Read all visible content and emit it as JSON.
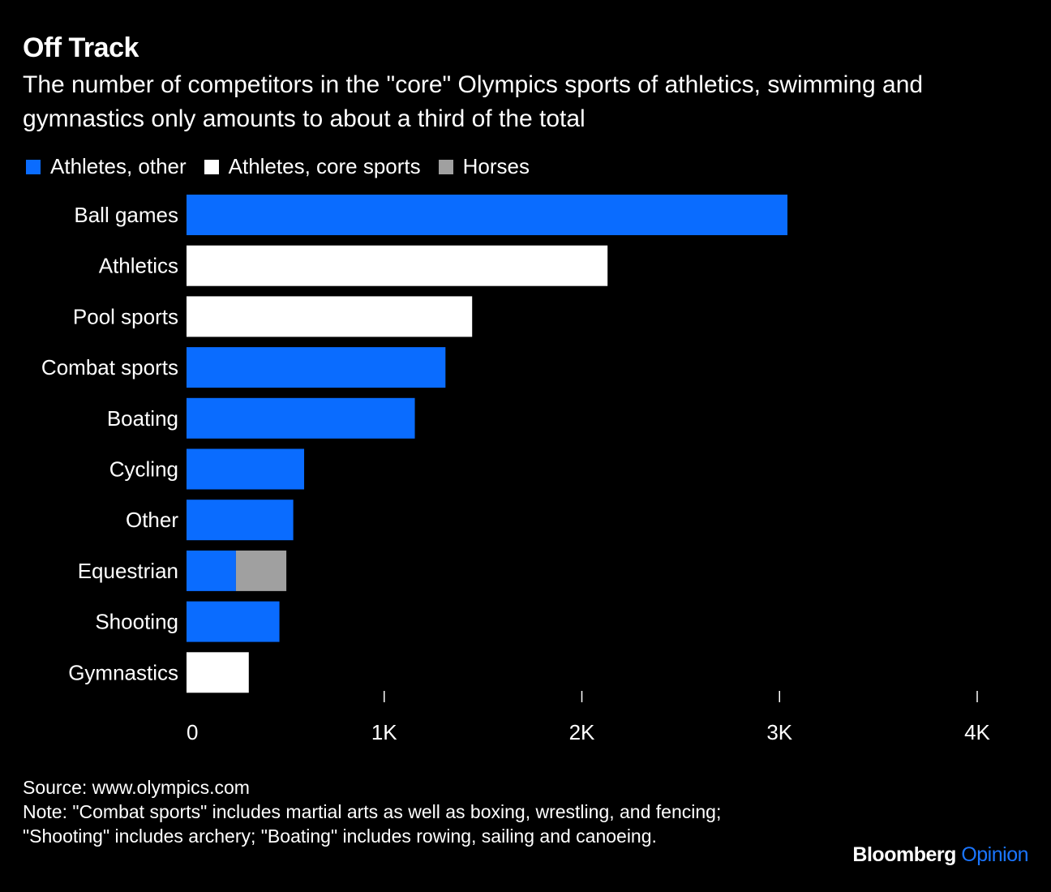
{
  "header": {
    "title": "Off Track",
    "subtitle": "The number of competitors in the \"core\" Olympics sports of athletics, swimming and gymnastics only amounts to about a third of the total"
  },
  "colors": {
    "other": "#0a6cff",
    "core": "#ffffff",
    "horses": "#a0a0a0",
    "background": "#000000"
  },
  "chart_data": {
    "type": "bar",
    "orientation": "horizontal",
    "stacked": true,
    "categories": [
      "Ball games",
      "Athletics",
      "Pool sports",
      "Combat sports",
      "Boating",
      "Cycling",
      "Other",
      "Equestrian",
      "Shooting",
      "Gymnastics"
    ],
    "series": [
      {
        "name": "Athletes, other",
        "values": [
          3040,
          0,
          0,
          1310,
          1155,
          595,
          540,
          250,
          470,
          0
        ]
      },
      {
        "name": "Athletes, core sports",
        "values": [
          0,
          2130,
          1445,
          0,
          0,
          0,
          0,
          0,
          0,
          315
        ]
      },
      {
        "name": "Horses",
        "values": [
          0,
          0,
          0,
          0,
          0,
          0,
          0,
          255,
          0,
          0
        ]
      }
    ],
    "xlim": [
      0,
      4000
    ],
    "xticks": [
      0,
      1000,
      2000,
      3000,
      4000
    ],
    "xtick_labels": [
      "0",
      "1K",
      "2K",
      "3K",
      "4K"
    ],
    "grid": false,
    "legend_position": "top-left"
  },
  "footer": {
    "source": "Source: www.olympics.com",
    "note": "Note: \"Combat sports\" includes martial arts as well as boxing, wrestling, and fencing; \"Shooting\" includes archery; \"Boating\" includes rowing, sailing and canoeing.",
    "brand_main": "Bloomberg",
    "brand_sub": "Opinion"
  }
}
